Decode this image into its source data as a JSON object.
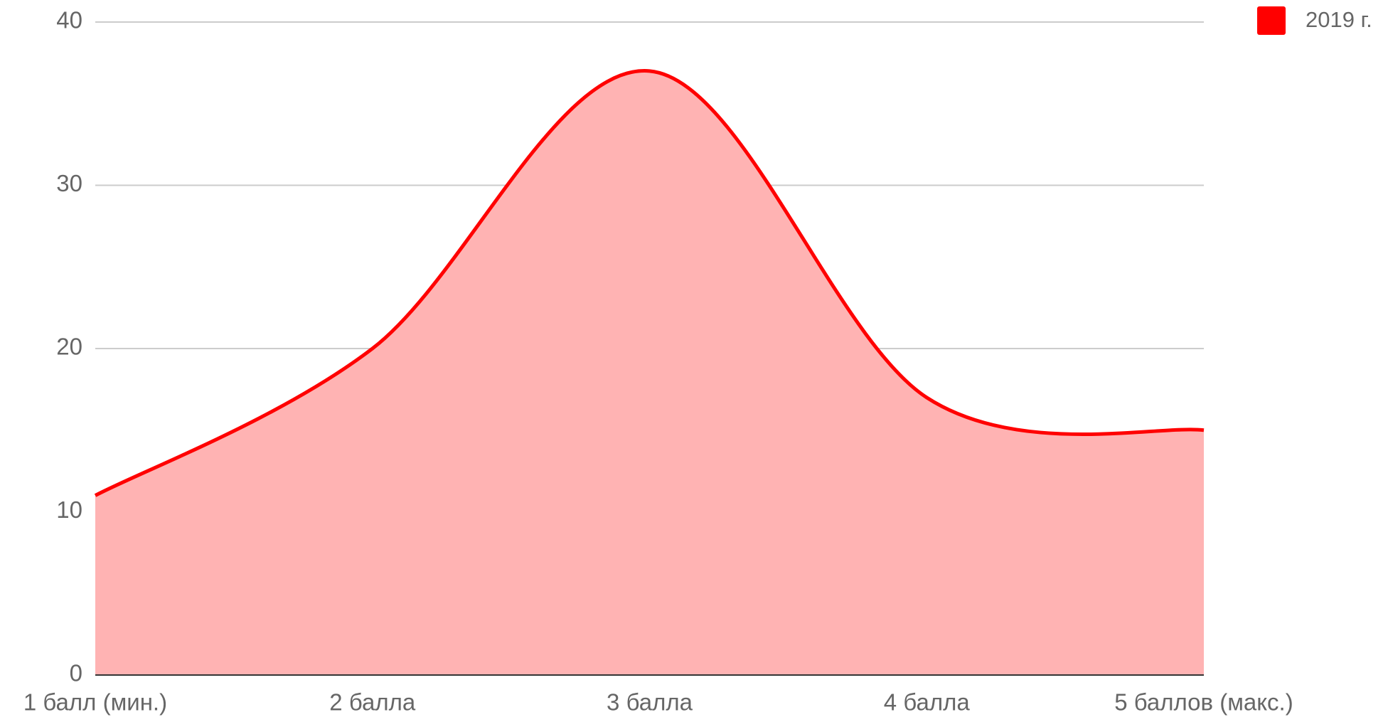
{
  "chart_data": {
    "type": "area",
    "categories": [
      "1 балл (мин.)",
      "2 балла",
      "3 балла",
      "4 балла",
      "5 баллов (макс.)"
    ],
    "series": [
      {
        "name": "2019 г.",
        "color": "#ff0000",
        "fill": "#ffb3b3",
        "values": [
          11,
          20,
          37,
          17,
          15
        ]
      }
    ],
    "ylim": [
      0,
      40
    ],
    "yticks": [
      0,
      10,
      20,
      30,
      40
    ],
    "grid": true,
    "smooth": true,
    "legend": "top-right"
  }
}
